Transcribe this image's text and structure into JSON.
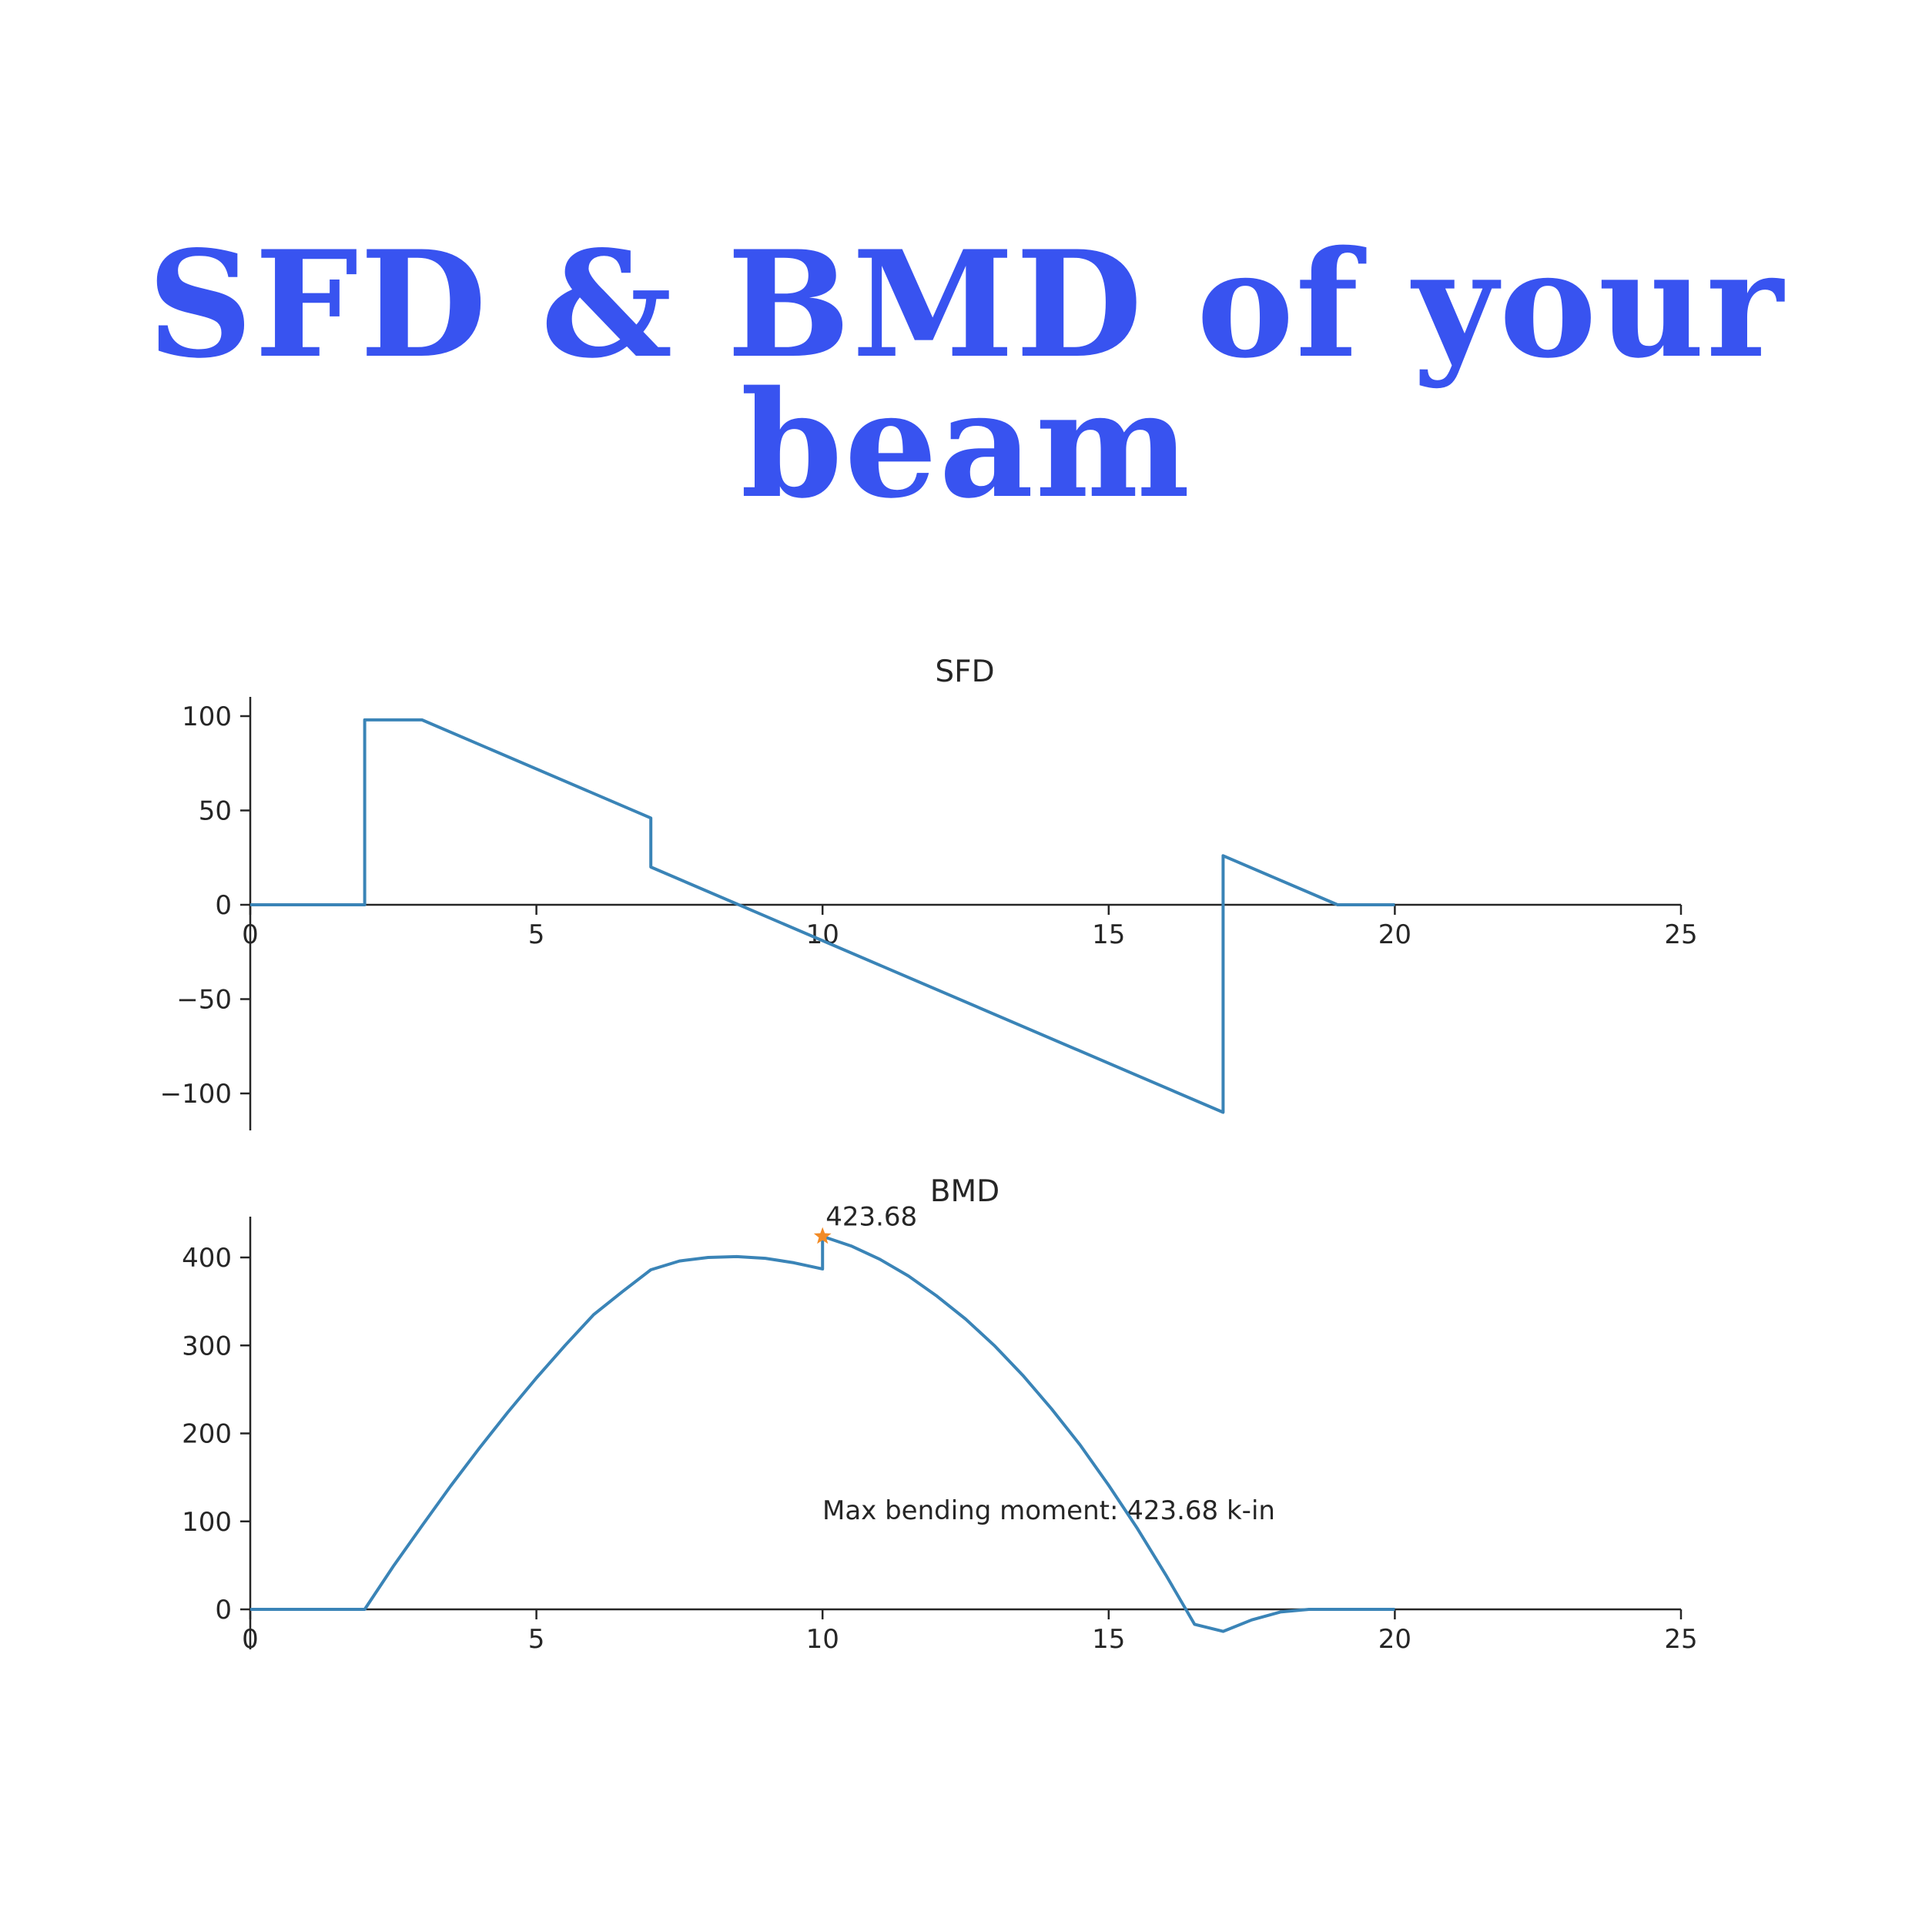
{
  "header": {
    "title_line1": "SFD & BMD of your",
    "title_line2": "beam"
  },
  "colors": {
    "title": "#3853f0",
    "line": "#3a84b7",
    "marker": "#f28b26",
    "axis": "#262626"
  },
  "chart_data": [
    {
      "type": "line",
      "title": "SFD",
      "xlim": [
        0,
        25
      ],
      "ylim": [
        -120,
        108
      ],
      "xticks": [
        0,
        5,
        10,
        15,
        20,
        25
      ],
      "yticks": [
        -100,
        -50,
        0,
        50,
        100
      ],
      "xtick_labels": [
        "0",
        "5",
        "10",
        "15",
        "20",
        "25"
      ],
      "ytick_labels": [
        "−100",
        "−50",
        "0",
        "50",
        "100"
      ],
      "series": [
        {
          "x": [
            0,
            2,
            2,
            3,
            7,
            7,
            17,
            17,
            19,
            20
          ],
          "y": [
            0,
            0,
            98,
            98,
            46,
            20,
            -110,
            26,
            0,
            0
          ]
        }
      ]
    },
    {
      "type": "line",
      "title": "BMD",
      "xlim": [
        0,
        25
      ],
      "ylim": [
        -30,
        445
      ],
      "xticks": [
        0,
        5,
        10,
        15,
        20,
        25
      ],
      "yticks": [
        0,
        100,
        200,
        300,
        400
      ],
      "xtick_labels": [
        "0",
        "5",
        "10",
        "15",
        "20",
        "25"
      ],
      "ytick_labels": [
        "0",
        "100",
        "200",
        "300",
        "400"
      ],
      "series": [
        {
          "x": [
            0,
            2,
            2.5,
            3,
            3.5,
            4,
            4.5,
            5,
            5.5,
            6,
            6.5,
            7,
            7.5,
            8,
            8.5,
            9,
            9.5,
            10,
            10,
            10.5,
            11,
            11.5,
            12,
            12.5,
            13,
            13.5,
            14,
            14.5,
            15,
            15.5,
            16,
            16.5,
            17,
            17.5,
            18,
            18.5,
            19,
            19.5,
            20
          ],
          "y": [
            0,
            0,
            49,
            95,
            140,
            183,
            224,
            263,
            300,
            335,
            361,
            386,
            396,
            400,
            401,
            399,
            394,
            387,
            424,
            413,
            398,
            379,
            356,
            330,
            300,
            266,
            228,
            187,
            141,
            92,
            39,
            -17,
            -25,
            -12,
            -3,
            0,
            0,
            0,
            0
          ]
        }
      ],
      "max_point": {
        "x": 10,
        "y": 424,
        "label": "423.68"
      },
      "annotation": "Max bending moment: 423.68 k-in"
    }
  ]
}
